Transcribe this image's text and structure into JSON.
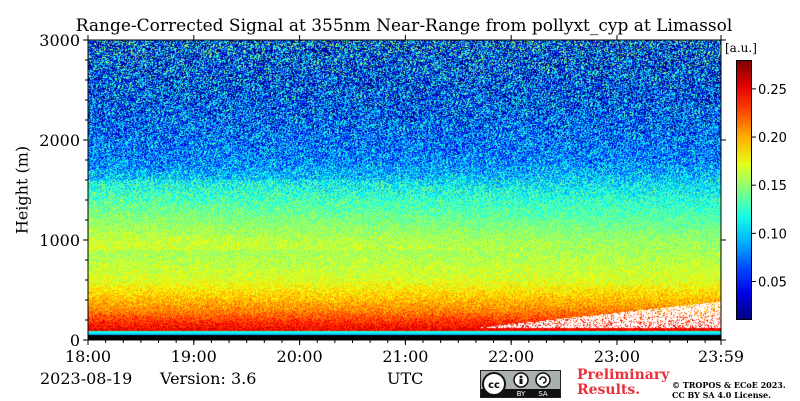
{
  "title": "Range-Corrected Signal at 355nm Near-Range from pollyxt_cyp at Limassol",
  "ylabel": "Height (m)",
  "xlabel": "UTC",
  "date": "2023-08-19",
  "version": "Version: 3.6",
  "colorbar": {
    "unit": "[a.u.]",
    "min": 0.01,
    "max": 0.28,
    "ticks": [
      "0.05",
      "0.10",
      "0.15",
      "0.20",
      "0.25"
    ],
    "colormap": "jet"
  },
  "footer": {
    "preliminary": [
      "Preliminary",
      "Results."
    ],
    "copyright": [
      "© TROPOS & ECoE 2023.",
      "CC BY SA 4.0 License."
    ],
    "license_badge": {
      "by": "BY",
      "sa": "SA"
    },
    "badge_icons": [
      "cc-icon",
      "attribution-icon",
      "share-alike-icon"
    ]
  },
  "chart_data": {
    "type": "heatmap",
    "title": "Range-Corrected Signal at 355nm Near-Range from pollyxt_cyp at Limassol",
    "xlabel": "UTC",
    "ylabel": "Height (m)",
    "x_ticks": [
      "18:00",
      "19:00",
      "20:00",
      "21:00",
      "22:00",
      "23:00",
      "23:59"
    ],
    "y_ticks": [
      "0",
      "1000",
      "2000",
      "3000"
    ],
    "xlim": [
      "18:00",
      "23:59"
    ],
    "ylim": [
      0,
      3000
    ],
    "colorbar_range": [
      0.01,
      0.28
    ],
    "profile_description_values": [
      {
        "height_m": 100,
        "signal": 0.25
      },
      {
        "height_m": 300,
        "signal": 0.21
      },
      {
        "height_m": 600,
        "signal": 0.17
      },
      {
        "height_m": 1000,
        "signal": 0.15
      },
      {
        "height_m": 1400,
        "signal": 0.12
      },
      {
        "height_m": 1800,
        "signal": 0.08
      },
      {
        "height_m": 2500,
        "signal": 0.06
      }
    ],
    "saturated_region": {
      "time_start": "21:40",
      "time_end": "23:59",
      "height_m": [
        120,
        450
      ]
    }
  }
}
